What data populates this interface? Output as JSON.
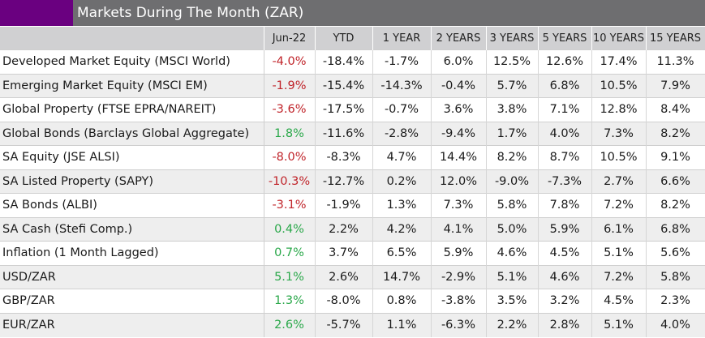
{
  "title": "Markets During The Month (ZAR)",
  "colors": {
    "accent": "#6a0080",
    "title_bar": "#6e6e70",
    "negative": "#c0242a",
    "positive": "#2aa84a"
  },
  "columns": [
    "Jun-22",
    "YTD",
    "1 YEAR",
    "2 YEARS",
    "3 YEARS",
    "5 YEARS",
    "10 YEARS",
    "15 YEARS"
  ],
  "rows": [
    {
      "label": "Developed Market Equity (MSCI World)",
      "tone": "neg",
      "values": [
        "-4.0%",
        "-18.4%",
        "-1.7%",
        "6.0%",
        "12.5%",
        "12.6%",
        "17.4%",
        "11.3%"
      ]
    },
    {
      "label": "Emerging Market Equity (MSCI EM)",
      "tone": "neg",
      "values": [
        "-1.9%",
        "-15.4%",
        "-14.3%",
        "-0.4%",
        "5.7%",
        "6.8%",
        "10.5%",
        "7.9%"
      ]
    },
    {
      "label": "Global Property (FTSE EPRA/NAREIT)",
      "tone": "neg",
      "values": [
        "-3.6%",
        "-17.5%",
        "-0.7%",
        "3.6%",
        "3.8%",
        "7.1%",
        "12.8%",
        "8.4%"
      ]
    },
    {
      "label": "Global Bonds (Barclays Global Aggregate)",
      "tone": "pos",
      "values": [
        "1.8%",
        "-11.6%",
        "-2.8%",
        "-9.4%",
        "1.7%",
        "4.0%",
        "7.3%",
        "8.2%"
      ]
    },
    {
      "label": "SA Equity (JSE ALSI)",
      "tone": "neg",
      "values": [
        "-8.0%",
        "-8.3%",
        "4.7%",
        "14.4%",
        "8.2%",
        "8.7%",
        "10.5%",
        "9.1%"
      ]
    },
    {
      "label": "SA Listed Property (SAPY)",
      "tone": "neg",
      "values": [
        "-10.3%",
        "-12.7%",
        "0.2%",
        "12.0%",
        "-9.0%",
        "-7.3%",
        "2.7%",
        "6.6%"
      ]
    },
    {
      "label": "SA Bonds (ALBI)",
      "tone": "neg",
      "values": [
        "-3.1%",
        "-1.9%",
        "1.3%",
        "7.3%",
        "5.8%",
        "7.8%",
        "7.2%",
        "8.2%"
      ]
    },
    {
      "label": "SA Cash (Stefi Comp.)",
      "tone": "pos",
      "values": [
        "0.4%",
        "2.2%",
        "4.2%",
        "4.1%",
        "5.0%",
        "5.9%",
        "6.1%",
        "6.8%"
      ]
    },
    {
      "label": "Inflation (1 Month Lagged)",
      "tone": "pos",
      "values": [
        "0.7%",
        "3.7%",
        "6.5%",
        "5.9%",
        "4.6%",
        "4.5%",
        "5.1%",
        "5.6%"
      ]
    },
    {
      "label": "USD/ZAR",
      "tone": "pos",
      "values": [
        "5.1%",
        "2.6%",
        "14.7%",
        "-2.9%",
        "5.1%",
        "4.6%",
        "7.2%",
        "5.8%"
      ]
    },
    {
      "label": "GBP/ZAR",
      "tone": "pos",
      "values": [
        "1.3%",
        "-8.0%",
        "0.8%",
        "-3.8%",
        "3.5%",
        "3.2%",
        "4.5%",
        "2.3%"
      ]
    },
    {
      "label": "EUR/ZAR",
      "tone": "pos",
      "values": [
        "2.6%",
        "-5.7%",
        "1.1%",
        "-6.3%",
        "2.2%",
        "2.8%",
        "5.1%",
        "4.0%"
      ]
    }
  ]
}
